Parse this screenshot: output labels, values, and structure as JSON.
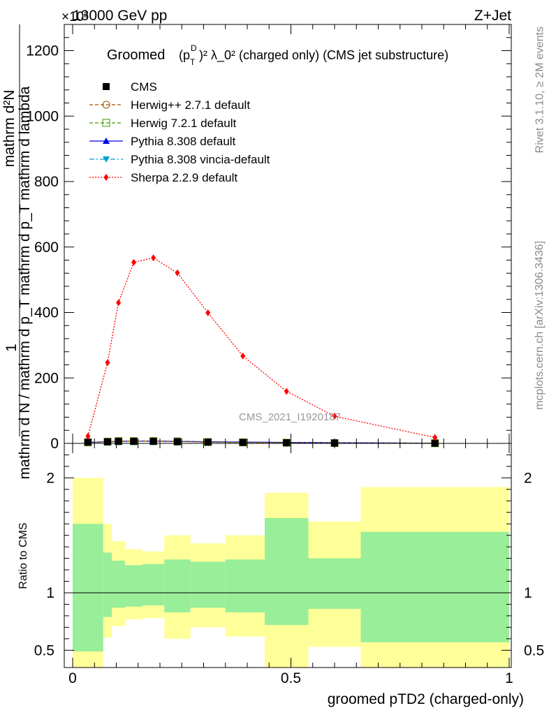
{
  "header": {
    "energy": "13000 GeV pp",
    "process": "Z+Jet",
    "exponent": "×10³"
  },
  "title_main": "Groomed",
  "title_math": "(p",
  "title_sub_T": "T",
  "title_sup_D": "D",
  "title_rest": ")² λ_0²  (charged only) (CMS jet substructure)",
  "side_text_top": "Rivet 3.1.10, ≥ 2M events",
  "side_text_bottom": "mcplots.cern.ch [arXiv:1306.3436]",
  "watermark": "CMS_2021_I1920187",
  "ylabel_main_top": "1",
  "ylabel_main_num": "mathrm d²N",
  "ylabel_main_den": "mathrm d N / mathrm d p_T mathrm d p_T mathrm d lambda",
  "ylabel_ratio": "Ratio to CMS",
  "xlabel": "groomed pTD2 (charged-only)",
  "legend": [
    {
      "label": "CMS",
      "color": "#000000",
      "marker": "square-filled",
      "line": "none"
    },
    {
      "label": "Herwig++ 2.7.1 default",
      "color": "#a05000",
      "marker": "circle-open",
      "line": "dashed"
    },
    {
      "label": "Herwig 7.2.1 default",
      "color": "#3a9a00",
      "marker": "square-open",
      "line": "dashed"
    },
    {
      "label": "Pythia 8.308 default",
      "color": "#0000ee",
      "marker": "triangle-up",
      "line": "solid"
    },
    {
      "label": "Pythia 8.308 vincia-default",
      "color": "#00a0c8",
      "marker": "triangle-down",
      "line": "dashdot"
    },
    {
      "label": "Sherpa 2.2.9 default",
      "color": "#ff0000",
      "marker": "diamond",
      "line": "dotted"
    }
  ],
  "chart_data": {
    "type": "line",
    "x_ticks": [
      "0",
      "0.5",
      "1"
    ],
    "xlim": [
      0,
      1
    ],
    "main_panel": {
      "ylim": [
        0,
        1280
      ],
      "y_ticks": [
        "0",
        "200",
        "400",
        "600",
        "800",
        "1000",
        "1200"
      ],
      "x": [
        0.035,
        0.08,
        0.105,
        0.14,
        0.185,
        0.24,
        0.31,
        0.39,
        0.49,
        0.6,
        0.83
      ],
      "series": [
        {
          "name": "Sherpa 2.2.9 default",
          "values": [
            22,
            247,
            430,
            553,
            567,
            521,
            399,
            267,
            159,
            83,
            18
          ]
        },
        {
          "name": "CMS",
          "values": [
            4,
            5,
            6,
            6,
            6,
            5,
            4,
            3,
            2,
            1,
            0.5
          ]
        },
        {
          "name": "Herwig++ 2.7.1 default",
          "values": [
            3,
            5,
            7,
            7,
            7,
            6,
            4,
            3,
            2,
            1,
            0.5
          ]
        },
        {
          "name": "Herwig 7.2.1 default",
          "values": [
            3,
            5,
            7,
            7,
            7,
            6,
            4,
            3,
            2,
            1,
            0.5
          ]
        },
        {
          "name": "Pythia 8.308 default",
          "values": [
            3,
            5,
            6,
            7,
            7,
            6,
            5,
            4,
            3,
            2,
            0.5
          ]
        },
        {
          "name": "Pythia 8.308 vincia-default",
          "values": [
            3,
            5,
            6,
            7,
            7,
            6,
            5,
            4,
            3,
            2,
            0.5
          ]
        }
      ]
    },
    "ratio_panel": {
      "ylim": [
        0.35,
        2.3
      ],
      "y_ticks": [
        "0.5",
        "1",
        "2"
      ],
      "bins": [
        {
          "x0": 0.0,
          "x1": 0.07,
          "green": [
            0.49,
            1.6
          ],
          "yellow": [
            0.35,
            2.0
          ]
        },
        {
          "x0": 0.07,
          "x1": 0.09,
          "green": [
            0.79,
            1.35
          ],
          "yellow": [
            0.61,
            1.6
          ]
        },
        {
          "x0": 0.09,
          "x1": 0.12,
          "green": [
            0.87,
            1.28
          ],
          "yellow": [
            0.71,
            1.45
          ]
        },
        {
          "x0": 0.12,
          "x1": 0.16,
          "green": [
            0.88,
            1.24
          ],
          "yellow": [
            0.77,
            1.38
          ]
        },
        {
          "x0": 0.16,
          "x1": 0.21,
          "green": [
            0.89,
            1.25
          ],
          "yellow": [
            0.78,
            1.36
          ]
        },
        {
          "x0": 0.21,
          "x1": 0.27,
          "green": [
            0.83,
            1.29
          ],
          "yellow": [
            0.6,
            1.5
          ]
        },
        {
          "x0": 0.27,
          "x1": 0.35,
          "green": [
            0.87,
            1.27
          ],
          "yellow": [
            0.7,
            1.43
          ]
        },
        {
          "x0": 0.35,
          "x1": 0.44,
          "green": [
            0.83,
            1.29
          ],
          "yellow": [
            0.62,
            1.5
          ]
        },
        {
          "x0": 0.44,
          "x1": 0.54,
          "green": [
            0.72,
            1.65
          ],
          "yellow": [
            0.35,
            1.87
          ]
        },
        {
          "x0": 0.54,
          "x1": 0.66,
          "green": [
            0.86,
            1.3
          ],
          "yellow": [
            0.53,
            1.62
          ]
        },
        {
          "x0": 0.66,
          "x1": 1.0,
          "green": [
            0.57,
            1.53
          ],
          "yellow": [
            0.35,
            1.92
          ]
        }
      ],
      "reference": 1
    },
    "grid": false,
    "legend_position": "top-left"
  }
}
